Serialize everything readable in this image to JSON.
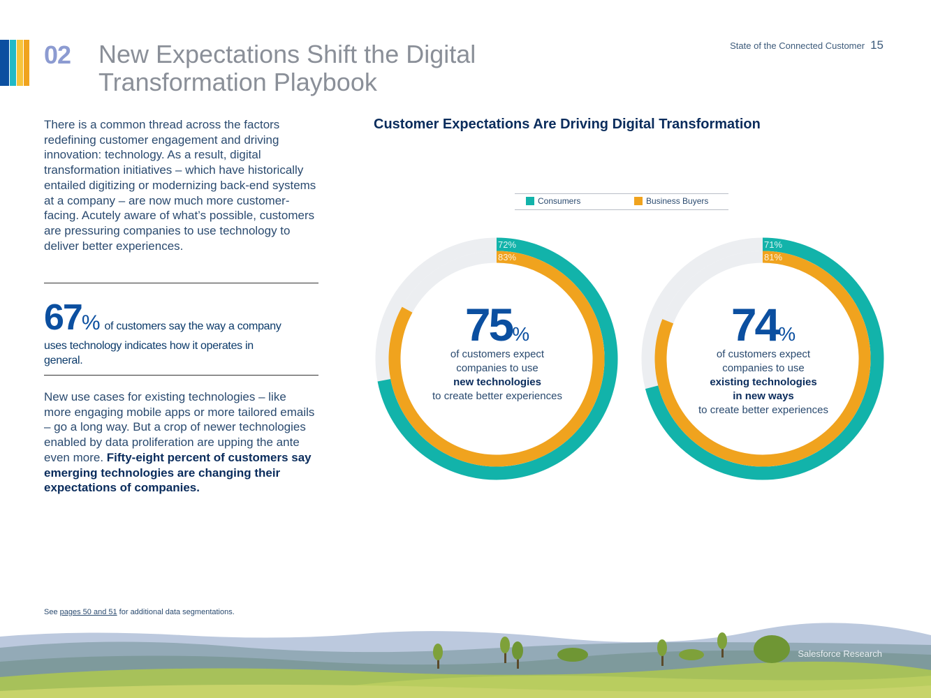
{
  "header": {
    "section_number": "02",
    "title_line1": "New Expectations Shift the Digital",
    "title_line2": "Transformation Playbook",
    "report_name": "State of the Connected Customer",
    "page_number": "15"
  },
  "intro_text": "There is a common thread across the factors redefining customer engagement and driving innovation: technology. As a result, digital transformation initiatives – which have historically entailed digitizing or modernizing back-end systems at a company – are now much more customer-facing. Acutely aware of what’s possible, customers are pressuring companies to use technology to deliver better experiences.",
  "stat": {
    "value": "67",
    "unit": "%",
    "text": "of customers say the way a company uses technology indicates how it operates in general."
  },
  "body2": {
    "text": "New use cases for existing technologies – like more engaging mobile apps or more tailored emails – go a long way. But a crop of newer technologies enabled by data proliferation are upping the ante even more.",
    "bold": "Fifty-eight percent of customers say emerging technologies are changing their expectations of companies."
  },
  "footnote": {
    "prefix": "See",
    "link": "pages 50 and 51",
    "suffix": "for additional data segmentations."
  },
  "brand": "Salesforce Research",
  "colors": {
    "consumers": "#12b3aa",
    "business_buyers": "#f0a31e",
    "track": "#eceef1",
    "headline_blue": "#0b4fa0",
    "stripe1": "#0b4fa0",
    "stripe2": "#22b9c6",
    "stripe3": "#f7c43c"
  },
  "chart_data": {
    "type": "donut",
    "title": "Customer Expectations Are Driving Digital Transformation",
    "legend": [
      "Consumers",
      "Business Buyers"
    ],
    "legend_position": "top",
    "charts": [
      {
        "center_value": "75",
        "center_unit": "%",
        "line1": "of customers expect",
        "line2": "companies to use",
        "bold1": "new technologies",
        "bold2": "",
        "line3": "to create better experiences",
        "series": [
          {
            "name": "Consumers",
            "value": 72,
            "label": "72%"
          },
          {
            "name": "Business Buyers",
            "value": 83,
            "label": "83%"
          }
        ]
      },
      {
        "center_value": "74",
        "center_unit": "%",
        "line1": "of customers expect",
        "line2": "companies to use",
        "bold1": "existing technologies",
        "bold2": "in new ways",
        "line3": "to create better experiences",
        "series": [
          {
            "name": "Consumers",
            "value": 71,
            "label": "71%"
          },
          {
            "name": "Business Buyers",
            "value": 81,
            "label": "81%"
          }
        ]
      }
    ]
  }
}
